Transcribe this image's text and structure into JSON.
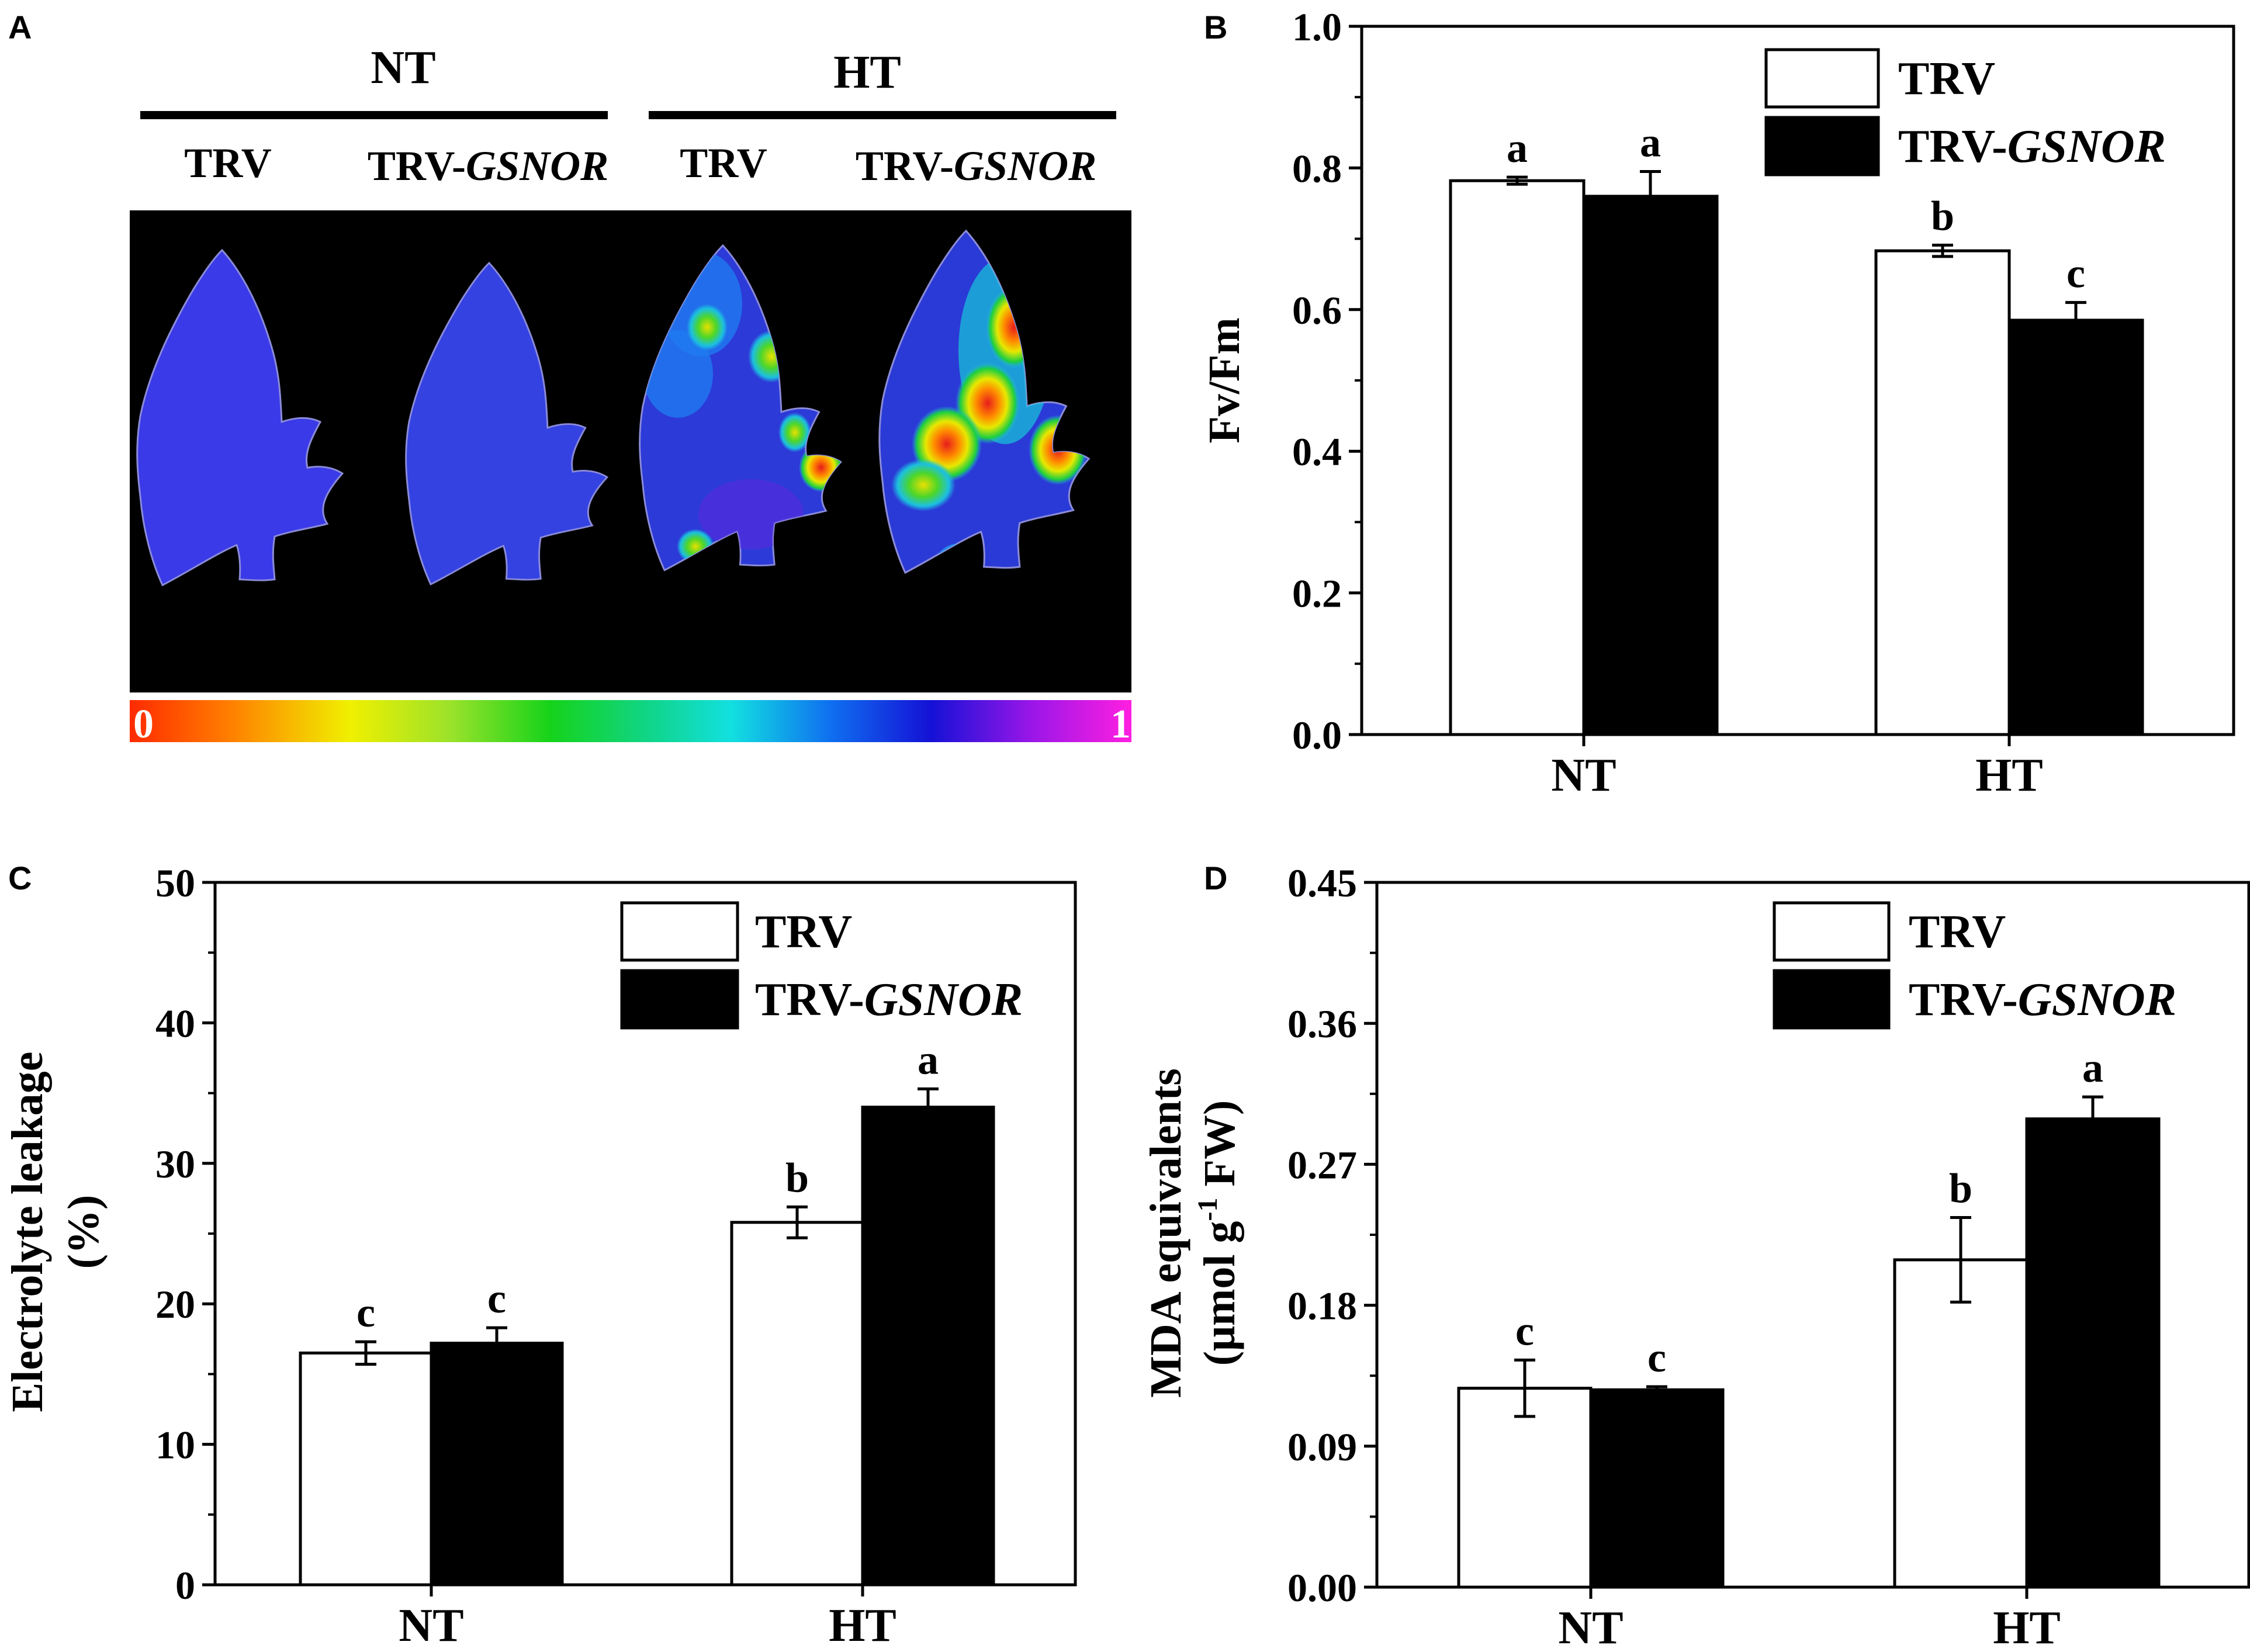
{
  "panel_a": {
    "letter": "A",
    "groups": [
      {
        "label": "NT",
        "sub_labels": [
          "TRV",
          "TRV-GSNOR"
        ]
      },
      {
        "label": "HT",
        "sub_labels": [
          "TRV",
          "TRV-GSNOR"
        ]
      }
    ],
    "leaves": [
      {
        "group": "NT",
        "genotype": "TRV",
        "damage": "none"
      },
      {
        "group": "NT",
        "genotype": "TRV-GSNOR",
        "damage": "none"
      },
      {
        "group": "HT",
        "genotype": "TRV",
        "damage": "moderate"
      },
      {
        "group": "HT",
        "genotype": "TRV-GSNOR",
        "damage": "severe"
      }
    ],
    "colorbar": {
      "min_label": "0",
      "max_label": "1"
    }
  },
  "colors": {
    "trv": "#ffffff",
    "trv_gsnor": "#000000",
    "leaf_base": "#3a38e6",
    "image_bg": "#000000"
  },
  "chart_data": [
    {
      "panel": "B",
      "type": "bar",
      "ylabel": "Fv/Fm",
      "ylim": [
        0,
        1.0
      ],
      "yticks": [
        "0.0",
        "0.2",
        "0.4",
        "0.6",
        "0.8",
        "1.0"
      ],
      "categories": [
        "NT",
        "HT"
      ],
      "legend_position": "top-right",
      "series": [
        {
          "name": "TRV",
          "name_italic": "",
          "values": [
            0.782,
            0.683
          ],
          "errors": [
            0.005,
            0.008
          ],
          "letters": [
            "a",
            "b"
          ]
        },
        {
          "name": "TRV-",
          "name_italic": "GSNOR",
          "values": [
            0.76,
            0.585
          ],
          "errors": [
            0.035,
            0.025
          ],
          "letters": [
            "a",
            "c"
          ]
        }
      ]
    },
    {
      "panel": "C",
      "type": "bar",
      "ylabel": "Electrolyte leakage",
      "ylabel2": "(%)",
      "ylim": [
        0,
        50
      ],
      "yticks": [
        "0",
        "10",
        "20",
        "30",
        "40",
        "50"
      ],
      "categories": [
        "NT",
        "HT"
      ],
      "legend_position": "top-right",
      "series": [
        {
          "name": "TRV",
          "name_italic": "",
          "values": [
            16.5,
            25.8
          ],
          "errors": [
            0.8,
            1.1
          ],
          "letters": [
            "c",
            "b"
          ]
        },
        {
          "name": "TRV-",
          "name_italic": "GSNOR",
          "values": [
            17.2,
            34.0
          ],
          "errors": [
            1.1,
            1.3
          ],
          "letters": [
            "c",
            "a"
          ]
        }
      ]
    },
    {
      "panel": "D",
      "type": "bar",
      "ylabel": "MDA equivalents",
      "ylabel2_pre": "(μmol g",
      "ylabel2_sup": "-1",
      "ylabel2_post": " FW)",
      "ylim": [
        0,
        0.45
      ],
      "yticks": [
        "0.00",
        "0.09",
        "0.18",
        "0.27",
        "0.36",
        "0.45"
      ],
      "categories": [
        "NT",
        "HT"
      ],
      "legend_position": "top-right",
      "series": [
        {
          "name": "TRV",
          "name_italic": "",
          "values": [
            0.127,
            0.209
          ],
          "errors": [
            0.018,
            0.027
          ],
          "letters": [
            "c",
            "b"
          ]
        },
        {
          "name": "TRV-",
          "name_italic": "GSNOR",
          "values": [
            0.126,
            0.299
          ],
          "errors": [
            0.002,
            0.014
          ],
          "letters": [
            "c",
            "a"
          ]
        }
      ]
    }
  ]
}
